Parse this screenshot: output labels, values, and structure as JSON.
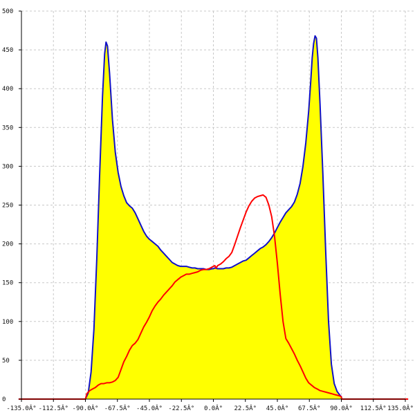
{
  "chart_data": {
    "type": "area",
    "title": "",
    "xlabel": "",
    "ylabel": "",
    "xlim": [
      -135,
      135
    ],
    "ylim": [
      0,
      500
    ],
    "grid": true,
    "x_tick_labels": [
      {
        "value": -135,
        "label": "-135.0Â°"
      },
      {
        "value": -112.5,
        "label": "-112.5Â°"
      },
      {
        "value": -90,
        "label": "-90.0Â°"
      },
      {
        "value": -67.5,
        "label": "-67.5Â°"
      },
      {
        "value": -45,
        "label": "-45.0Â°"
      },
      {
        "value": -22.5,
        "label": "-22.5Â°"
      },
      {
        "value": 0,
        "label": "0.0Â°"
      },
      {
        "value": 22.5,
        "label": "22.5Â°"
      },
      {
        "value": 45,
        "label": "45.0Â°"
      },
      {
        "value": 67.5,
        "label": "67.5Â°"
      },
      {
        "value": 90,
        "label": "90.0Â°"
      },
      {
        "value": 112.5,
        "label": "112.5Â°"
      },
      {
        "value": 135,
        "label": "135.0Â°"
      }
    ],
    "y_tick_labels": [
      {
        "value": 0,
        "label": "0"
      },
      {
        "value": 50,
        "label": "50"
      },
      {
        "value": 100,
        "label": "100"
      },
      {
        "value": 150,
        "label": "150"
      },
      {
        "value": 200,
        "label": "200"
      },
      {
        "value": 250,
        "label": "250"
      },
      {
        "value": 300,
        "label": "300"
      },
      {
        "value": 350,
        "label": "350"
      },
      {
        "value": 400,
        "label": "400"
      },
      {
        "value": 450,
        "label": "450"
      },
      {
        "value": 500,
        "label": "500"
      }
    ],
    "series": [
      {
        "color": "#1010c8",
        "fill": "#ffff00",
        "points": [
          [
            -137,
            0
          ],
          [
            -90,
            0
          ],
          [
            -88,
            8
          ],
          [
            -86,
            35
          ],
          [
            -84,
            90
          ],
          [
            -82,
            180
          ],
          [
            -80,
            290
          ],
          [
            -78,
            390
          ],
          [
            -76.5,
            445
          ],
          [
            -75.5,
            460
          ],
          [
            -74.5,
            455
          ],
          [
            -73,
            420
          ],
          [
            -71,
            360
          ],
          [
            -69,
            318
          ],
          [
            -67,
            292
          ],
          [
            -65,
            274
          ],
          [
            -63,
            262
          ],
          [
            -61,
            253
          ],
          [
            -59,
            249
          ],
          [
            -57,
            246
          ],
          [
            -55,
            240
          ],
          [
            -53,
            232
          ],
          [
            -51,
            224
          ],
          [
            -49,
            216
          ],
          [
            -47,
            210
          ],
          [
            -45,
            206
          ],
          [
            -43,
            203
          ],
          [
            -41,
            200
          ],
          [
            -39,
            197
          ],
          [
            -37,
            192
          ],
          [
            -35,
            188
          ],
          [
            -33,
            184
          ],
          [
            -31,
            180
          ],
          [
            -29,
            176
          ],
          [
            -27,
            174
          ],
          [
            -25,
            172
          ],
          [
            -23,
            171
          ],
          [
            -21,
            171
          ],
          [
            -19,
            171
          ],
          [
            -17,
            170
          ],
          [
            -15,
            169
          ],
          [
            -13,
            169
          ],
          [
            -11,
            168
          ],
          [
            -9,
            168
          ],
          [
            -7,
            168
          ],
          [
            -5,
            167
          ],
          [
            -3,
            167
          ],
          [
            -1,
            168
          ],
          [
            0,
            168
          ],
          [
            1,
            169
          ],
          [
            3,
            168
          ],
          [
            5,
            168
          ],
          [
            7,
            168
          ],
          [
            9,
            169
          ],
          [
            11,
            169
          ],
          [
            13,
            170
          ],
          [
            15,
            172
          ],
          [
            17,
            174
          ],
          [
            19,
            176
          ],
          [
            21,
            178
          ],
          [
            23,
            179
          ],
          [
            25,
            182
          ],
          [
            27,
            185
          ],
          [
            29,
            188
          ],
          [
            31,
            191
          ],
          [
            33,
            194
          ],
          [
            35,
            196
          ],
          [
            37,
            199
          ],
          [
            39,
            203
          ],
          [
            41,
            208
          ],
          [
            43,
            214
          ],
          [
            45,
            221
          ],
          [
            47,
            228
          ],
          [
            49,
            234
          ],
          [
            51,
            240
          ],
          [
            53,
            244
          ],
          [
            55,
            248
          ],
          [
            57,
            254
          ],
          [
            59,
            264
          ],
          [
            61,
            278
          ],
          [
            63,
            300
          ],
          [
            65,
            330
          ],
          [
            67,
            370
          ],
          [
            68.5,
            410
          ],
          [
            69.5,
            440
          ],
          [
            70.5,
            458
          ],
          [
            71.5,
            468
          ],
          [
            72.5,
            465
          ],
          [
            73.5,
            440
          ],
          [
            75,
            380
          ],
          [
            77,
            290
          ],
          [
            79,
            190
          ],
          [
            81,
            100
          ],
          [
            83,
            45
          ],
          [
            85,
            20
          ],
          [
            87,
            10
          ],
          [
            89,
            5
          ],
          [
            90,
            3
          ],
          [
            90.2,
            0
          ],
          [
            137,
            0
          ]
        ]
      },
      {
        "color": "#ff0000",
        "fill": "none",
        "points": [
          [
            -137,
            0
          ],
          [
            -90,
            0
          ],
          [
            -89,
            7
          ],
          [
            -87,
            11
          ],
          [
            -85,
            13
          ],
          [
            -83,
            15
          ],
          [
            -81,
            18
          ],
          [
            -79,
            20
          ],
          [
            -77,
            20
          ],
          [
            -75,
            21
          ],
          [
            -73,
            21
          ],
          [
            -71,
            22
          ],
          [
            -69,
            24
          ],
          [
            -67,
            28
          ],
          [
            -65,
            38
          ],
          [
            -63,
            48
          ],
          [
            -61,
            55
          ],
          [
            -59,
            63
          ],
          [
            -57,
            69
          ],
          [
            -55,
            72
          ],
          [
            -53,
            77
          ],
          [
            -51,
            85
          ],
          [
            -49,
            93
          ],
          [
            -47,
            99
          ],
          [
            -45,
            106
          ],
          [
            -43,
            114
          ],
          [
            -41,
            120
          ],
          [
            -39,
            125
          ],
          [
            -37,
            129
          ],
          [
            -35,
            134
          ],
          [
            -33,
            138
          ],
          [
            -31,
            142
          ],
          [
            -29,
            146
          ],
          [
            -27,
            151
          ],
          [
            -25,
            154
          ],
          [
            -23,
            157
          ],
          [
            -21,
            159
          ],
          [
            -19,
            161
          ],
          [
            -17,
            161
          ],
          [
            -15,
            162
          ],
          [
            -13,
            163
          ],
          [
            -11,
            164
          ],
          [
            -9,
            166
          ],
          [
            -7,
            167
          ],
          [
            -5,
            167
          ],
          [
            -3,
            168
          ],
          [
            -1,
            170
          ],
          [
            0,
            171
          ],
          [
            1,
            172
          ],
          [
            2,
            169
          ],
          [
            3,
            172
          ],
          [
            5,
            174
          ],
          [
            7,
            177
          ],
          [
            9,
            181
          ],
          [
            11,
            184
          ],
          [
            13,
            189
          ],
          [
            15,
            199
          ],
          [
            17,
            210
          ],
          [
            19,
            221
          ],
          [
            21,
            231
          ],
          [
            23,
            241
          ],
          [
            25,
            249
          ],
          [
            27,
            255
          ],
          [
            29,
            259
          ],
          [
            31,
            261
          ],
          [
            33,
            262
          ],
          [
            35,
            263
          ],
          [
            37,
            260
          ],
          [
            39,
            250
          ],
          [
            41,
            235
          ],
          [
            43,
            210
          ],
          [
            45,
            175
          ],
          [
            47,
            135
          ],
          [
            49,
            100
          ],
          [
            51,
            78
          ],
          [
            53,
            72
          ],
          [
            55,
            65
          ],
          [
            57,
            58
          ],
          [
            59,
            50
          ],
          [
            61,
            43
          ],
          [
            63,
            35
          ],
          [
            65,
            27
          ],
          [
            67,
            21
          ],
          [
            69,
            18
          ],
          [
            71,
            15
          ],
          [
            73,
            13
          ],
          [
            75,
            11
          ],
          [
            77,
            10
          ],
          [
            79,
            9
          ],
          [
            81,
            8
          ],
          [
            83,
            7
          ],
          [
            85,
            6
          ],
          [
            87,
            5
          ],
          [
            89,
            4
          ],
          [
            90,
            3
          ],
          [
            90.2,
            0
          ],
          [
            137,
            0
          ]
        ]
      }
    ]
  }
}
